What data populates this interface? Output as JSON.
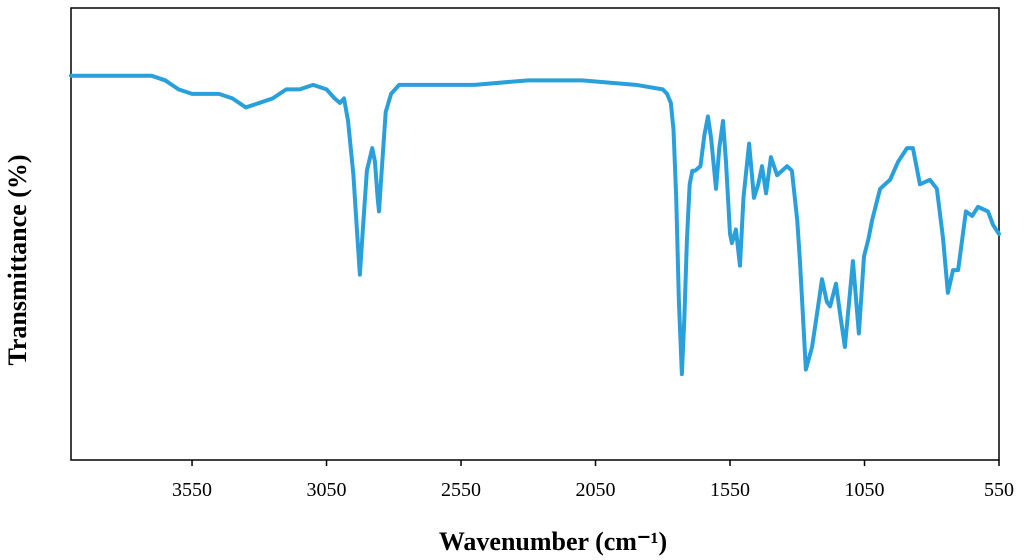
{
  "chart_data": {
    "type": "line",
    "xlabel": "Wavenumber (cm⁻¹)",
    "ylabel": "Transmittance (%)",
    "xlim": [
      4000,
      550
    ],
    "ylim": [
      0,
      100
    ],
    "xticks": [
      3550,
      3050,
      2550,
      2050,
      1550,
      1050,
      550
    ],
    "series": [
      {
        "color": "#29a0dc",
        "x": [
          4000,
          3800,
          3700,
          3650,
          3600,
          3550,
          3450,
          3400,
          3350,
          3300,
          3250,
          3200,
          3150,
          3100,
          3050,
          3020,
          3000,
          2985,
          2970,
          2950,
          2935,
          2926,
          2915,
          2900,
          2880,
          2870,
          2860,
          2855,
          2845,
          2830,
          2810,
          2780,
          2700,
          2500,
          2300,
          2100,
          1900,
          1800,
          1784,
          1770,
          1760,
          1750,
          1740,
          1729,
          1720,
          1710,
          1700,
          1690,
          1680,
          1660,
          1645,
          1632,
          1620,
          1602,
          1590,
          1576,
          1565,
          1550,
          1543,
          1528,
          1513,
          1500,
          1479,
          1470,
          1461,
          1445,
          1431,
          1416,
          1398,
          1375,
          1338,
          1320,
          1300,
          1290,
          1268,
          1245,
          1225,
          1208,
          1190,
          1178,
          1156,
          1140,
          1123,
          1093,
          1071,
          1052,
          1035,
          1022,
          992,
          955,
          925,
          892,
          870,
          844,
          807,
          781,
          758,
          740,
          721,
          702,
          673,
          650,
          628,
          591,
          572,
          550
        ],
        "values": [
          85,
          85,
          85,
          84,
          82,
          81,
          81,
          80,
          78,
          79,
          80,
          82,
          82,
          83,
          82,
          80,
          79,
          80,
          75,
          63,
          49,
          41,
          51,
          64,
          69,
          66,
          58,
          55,
          64,
          77,
          81,
          83,
          83,
          83,
          84,
          84,
          83,
          82,
          81,
          79,
          73,
          58,
          35,
          19,
          31,
          49,
          61,
          64,
          64,
          65,
          72,
          76,
          71,
          60,
          69,
          75,
          66,
          50,
          48,
          51,
          43,
          58,
          70,
          64,
          58,
          61,
          65,
          59,
          67,
          63,
          65,
          64,
          53,
          44,
          20,
          25,
          33,
          40,
          35,
          34,
          39,
          32,
          25,
          44,
          28,
          45,
          49,
          53,
          60,
          62,
          66,
          69,
          69,
          61,
          62,
          60,
          49,
          37,
          42,
          42,
          55,
          54,
          56,
          55,
          52,
          50
        ]
      }
    ]
  }
}
